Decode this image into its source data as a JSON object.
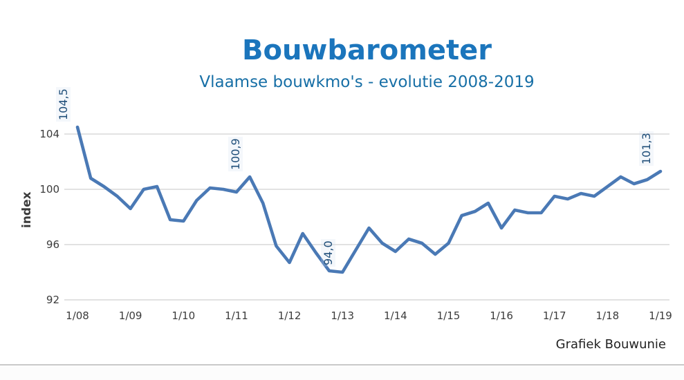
{
  "chart_data": {
    "type": "line",
    "title": "Bouwbarometer",
    "subtitle": "Vlaamse bouwkmo's - evolutie 2008-2019",
    "ylabel": "index",
    "credit": "Grafiek Bouwunie",
    "legend": "none",
    "grid": "horizontal-only",
    "x_frequency": "quarterly",
    "x_tick_labels": [
      "1/08",
      "1/09",
      "1/10",
      "1/11",
      "1/12",
      "1/13",
      "1/14",
      "1/15",
      "1/16",
      "1/17",
      "1/18",
      "1/19"
    ],
    "y_ticks": [
      104,
      100,
      96,
      92
    ],
    "ylim": [
      91.2,
      105.6
    ],
    "series": [
      {
        "name": "Bouwbarometer index",
        "values": [
          104.5,
          100.8,
          100.2,
          99.5,
          98.6,
          100.0,
          100.2,
          97.8,
          97.7,
          99.2,
          100.1,
          100.0,
          99.8,
          100.9,
          99.0,
          95.9,
          94.7,
          96.8,
          95.4,
          94.1,
          94.0,
          95.6,
          97.2,
          96.1,
          95.5,
          96.4,
          96.1,
          95.3,
          96.1,
          98.1,
          98.4,
          99.0,
          97.2,
          98.5,
          98.3,
          98.3,
          99.5,
          99.3,
          99.7,
          99.5,
          100.2,
          100.9,
          100.4,
          100.7,
          101.3
        ]
      }
    ],
    "annotations": [
      {
        "label": "104,5",
        "point_index": 0,
        "value": 104.5
      },
      {
        "label": "100,9",
        "point_index": 13,
        "value": 100.9
      },
      {
        "label": "94,0",
        "point_index": 20,
        "value": 94.0
      },
      {
        "label": "101,3",
        "point_index": 44,
        "value": 101.3
      }
    ],
    "colors": {
      "line": "#4a79b5",
      "title": "#1b75bc",
      "subtitle": "#176fa6",
      "annotation": "#1f4e79",
      "grid": "#d9d9d9",
      "axis_text": "#3b3b3b",
      "credit": "#222222"
    }
  }
}
